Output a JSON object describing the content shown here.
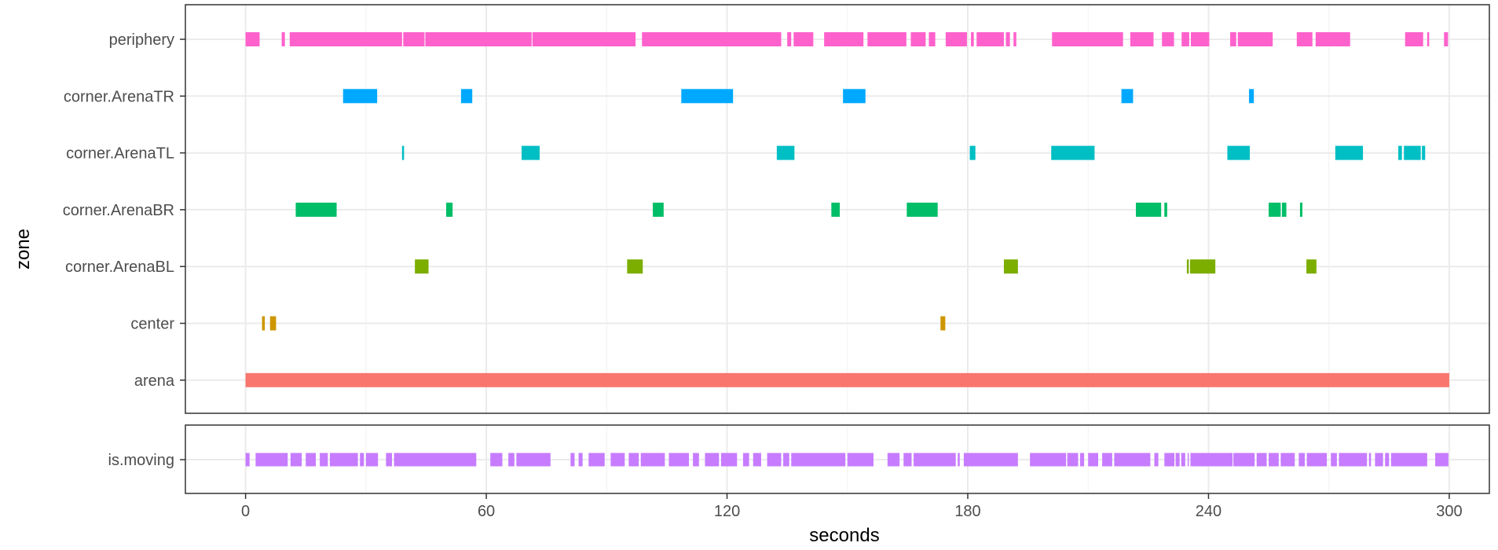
{
  "chart_data": {
    "type": "timeline",
    "xlabel": "seconds",
    "ylabel": "zone",
    "xlim": [
      -15,
      310
    ],
    "x_ticks": [
      0,
      60,
      120,
      180,
      240,
      300
    ],
    "grid": true,
    "legend": "none",
    "zone_panel": {
      "categories": [
        "periphery",
        "corner.ArenaTR",
        "corner.ArenaTL",
        "corner.ArenaBR",
        "corner.ArenaBL",
        "center",
        "arena"
      ],
      "series": [
        {
          "name": "periphery",
          "color": "#FF61CC",
          "intervals": [
            [
              0,
              3.5
            ],
            [
              9,
              9.8
            ],
            [
              11,
              39
            ],
            [
              39.3,
              44.6
            ],
            [
              44.8,
              71.3
            ],
            [
              71.5,
              97.2
            ],
            [
              98.8,
              133.5
            ],
            [
              135,
              136
            ],
            [
              136.6,
              141.5
            ],
            [
              144.2,
              154
            ],
            [
              155,
              164.7
            ],
            [
              165.8,
              169.5
            ],
            [
              170.3,
              171.9
            ],
            [
              174.5,
              179.8
            ],
            [
              180.8,
              181.5
            ],
            [
              182.2,
              189
            ],
            [
              189.5,
              190.5
            ],
            [
              191.4,
              192.1
            ],
            [
              201,
              218.7
            ],
            [
              220.5,
              226.3
            ],
            [
              228.4,
              231.4
            ],
            [
              233.3,
              235.2
            ],
            [
              235.6,
              240.2
            ],
            [
              245.4,
              246.9
            ],
            [
              247.3,
              256
            ],
            [
              262,
              265.9
            ],
            [
              266.7,
              275.3
            ],
            [
              289,
              293.5
            ],
            [
              294.5,
              295
            ],
            [
              298.7,
              299.7
            ]
          ]
        },
        {
          "name": "corner.ArenaTR",
          "color": "#00A9FF",
          "intervals": [
            [
              24.3,
              32.8
            ],
            [
              53.7,
              56.5
            ],
            [
              108.6,
              121.5
            ],
            [
              148.9,
              154.5
            ],
            [
              218.3,
              221.2
            ],
            [
              250.1,
              251.3
            ]
          ]
        },
        {
          "name": "corner.ArenaTL",
          "color": "#00BFC4",
          "intervals": [
            [
              39,
              39.5
            ],
            [
              68.8,
              73.3
            ],
            [
              132.4,
              136.8
            ],
            [
              180.5,
              181.9
            ],
            [
              200.8,
              211.6
            ],
            [
              244.7,
              250.3
            ],
            [
              271.6,
              278.5
            ],
            [
              287.3,
              288.2
            ],
            [
              288.7,
              292.9
            ],
            [
              293.2,
              294
            ]
          ]
        },
        {
          "name": "corner.ArenaBR",
          "color": "#00BE67",
          "intervals": [
            [
              12.5,
              22.7
            ],
            [
              50,
              51.6
            ],
            [
              101.5,
              104.2
            ],
            [
              146,
              148.1
            ],
            [
              164.8,
              172.5
            ],
            [
              221.9,
              228.2
            ],
            [
              229,
              229.7
            ],
            [
              255,
              258
            ],
            [
              258.3,
              259.4
            ],
            [
              262.8,
              263.4
            ]
          ]
        },
        {
          "name": "corner.ArenaBL",
          "color": "#7CAE00",
          "intervals": [
            [
              42.2,
              45.6
            ],
            [
              95.1,
              99
            ],
            [
              189,
              192.5
            ],
            [
              234.6,
              235.1
            ],
            [
              235.4,
              241.7
            ],
            [
              264.4,
              266.9
            ]
          ]
        },
        {
          "name": "center",
          "color": "#CD9600",
          "intervals": [
            [
              4.1,
              4.8
            ],
            [
              6.1,
              7.6
            ],
            [
              173.2,
              174.4
            ]
          ]
        },
        {
          "name": "arena",
          "color": "#F8766D",
          "intervals": [
            [
              0,
              300
            ]
          ]
        }
      ]
    },
    "moving_panel": {
      "categories": [
        "is.moving"
      ],
      "series": [
        {
          "name": "is.moving",
          "color": "#C77CFF",
          "intervals": [
            [
              0,
              1
            ],
            [
              2.5,
              10.5
            ],
            [
              11.2,
              14
            ],
            [
              15,
              17.5
            ],
            [
              18.5,
              20.5
            ],
            [
              21,
              28
            ],
            [
              28.5,
              29.5
            ],
            [
              30,
              33
            ],
            [
              35,
              36.5
            ],
            [
              37,
              57.5
            ],
            [
              61,
              64
            ],
            [
              65.5,
              67
            ],
            [
              67.5,
              76
            ],
            [
              81,
              82
            ],
            [
              83,
              84
            ],
            [
              85.5,
              89.5
            ],
            [
              91,
              94.5
            ],
            [
              95.5,
              98
            ],
            [
              98.5,
              104.5
            ],
            [
              105.5,
              110.5
            ],
            [
              111.5,
              113
            ],
            [
              114.5,
              118
            ],
            [
              118.5,
              122.5
            ],
            [
              124,
              125.5
            ],
            [
              126.5,
              128.5
            ],
            [
              130,
              133.5
            ],
            [
              134,
              135.5
            ],
            [
              136,
              149.5
            ],
            [
              150,
              156.5
            ],
            [
              160,
              163
            ],
            [
              164,
              166
            ],
            [
              166.5,
              177
            ],
            [
              177.5,
              178
            ],
            [
              179,
              192.5
            ],
            [
              195.5,
              204.5
            ],
            [
              204.8,
              207.5
            ],
            [
              208,
              209
            ],
            [
              210,
              212.5
            ],
            [
              213.5,
              216
            ],
            [
              216.5,
              225.5
            ],
            [
              226.5,
              227.5
            ],
            [
              229,
              231.5
            ],
            [
              231.8,
              232.8
            ],
            [
              233.2,
              234.2
            ],
            [
              234.8,
              235
            ],
            [
              235.5,
              246
            ],
            [
              246.2,
              251.5
            ],
            [
              252,
              254.5
            ],
            [
              255,
              257.5
            ],
            [
              258,
              261.5
            ],
            [
              262.5,
              264
            ],
            [
              264.5,
              269.5
            ],
            [
              270.5,
              272
            ],
            [
              272.5,
              279.5
            ],
            [
              280,
              280.5
            ],
            [
              281.5,
              283.5
            ],
            [
              284,
              285
            ],
            [
              285.5,
              294.5
            ],
            [
              296.5,
              299.8
            ]
          ]
        }
      ]
    }
  }
}
